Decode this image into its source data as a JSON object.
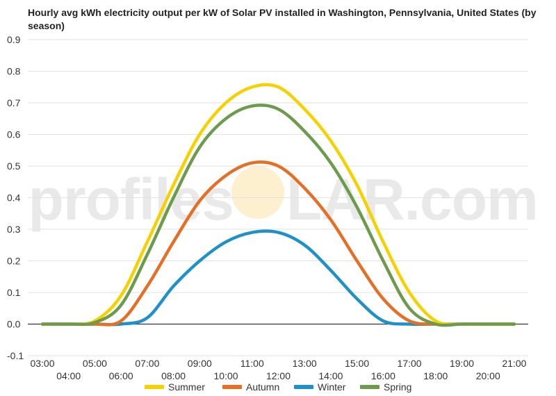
{
  "chart_data": {
    "type": "line",
    "title": "Hourly avg kWh electricity output per kW of Solar PV installed in Washington, Pennsylvania, United States (by season)",
    "xlabel": "",
    "ylabel": "",
    "x": [
      "03:00",
      "04:00",
      "05:00",
      "06:00",
      "07:00",
      "08:00",
      "09:00",
      "10:00",
      "11:00",
      "12:00",
      "13:00",
      "14:00",
      "15:00",
      "16:00",
      "17:00",
      "18:00",
      "19:00",
      "20:00",
      "21:00"
    ],
    "x_tick_labels_top": [
      "03:00",
      "05:00",
      "07:00",
      "09:00",
      "11:00",
      "13:00",
      "15:00",
      "17:00",
      "19:00",
      "21:00"
    ],
    "x_tick_labels_bottom": [
      "04:00",
      "06:00",
      "08:00",
      "10:00",
      "12:00",
      "14:00",
      "16:00",
      "18:00",
      "20:00"
    ],
    "y_ticks": [
      "-0.1",
      "0.0",
      "0.1",
      "0.2",
      "0.3",
      "0.4",
      "0.5",
      "0.6",
      "0.7",
      "0.8",
      "0.9"
    ],
    "ylim": [
      -0.1,
      0.9
    ],
    "grid": true,
    "legend_position": "bottom",
    "series": [
      {
        "name": "Summer",
        "color": "#f5d100",
        "values": [
          0,
          0,
          0.01,
          0.09,
          0.26,
          0.44,
          0.6,
          0.7,
          0.75,
          0.75,
          0.68,
          0.58,
          0.44,
          0.26,
          0.1,
          0.01,
          0,
          0,
          0
        ]
      },
      {
        "name": "Autumn",
        "color": "#e46f25",
        "values": [
          0,
          0,
          0,
          0.01,
          0.12,
          0.26,
          0.39,
          0.47,
          0.51,
          0.5,
          0.43,
          0.33,
          0.2,
          0.08,
          0.01,
          0,
          0,
          0,
          0
        ]
      },
      {
        "name": "Winter",
        "color": "#1f91c8",
        "values": [
          0,
          0,
          0,
          0,
          0.02,
          0.12,
          0.2,
          0.26,
          0.29,
          0.29,
          0.25,
          0.17,
          0.08,
          0.01,
          0,
          0,
          0,
          0,
          0
        ]
      },
      {
        "name": "Spring",
        "color": "#6d9b4e",
        "values": [
          0,
          0,
          0.005,
          0.06,
          0.22,
          0.4,
          0.56,
          0.65,
          0.69,
          0.68,
          0.61,
          0.51,
          0.37,
          0.2,
          0.05,
          0,
          0,
          0,
          0
        ]
      }
    ]
  },
  "watermark": {
    "left_text": "profiles",
    "right_text": "LAR.com",
    "hidden_letter": "O"
  },
  "colors": {
    "grid": "#e2e2e2",
    "zero_line": "#333333",
    "text": "#333333"
  }
}
